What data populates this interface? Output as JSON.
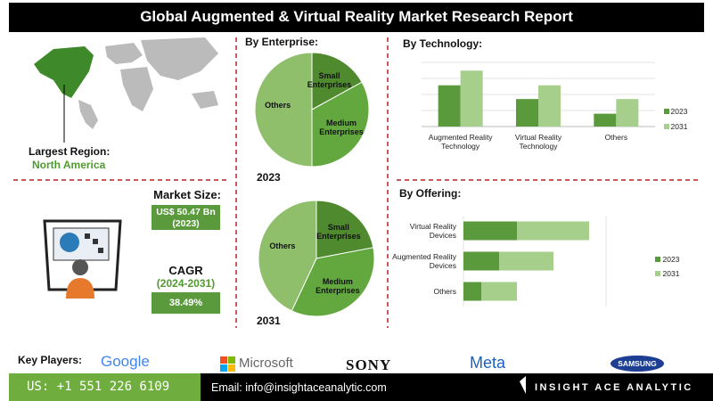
{
  "header": {
    "title": "Global Augmented & Virtual Reality Market Research Report"
  },
  "left": {
    "largest_region_label": "Largest Region:",
    "largest_region": "North America",
    "market_size_label": "Market Size:",
    "market_size": "US$ 50.47 Bn",
    "market_size_year": "(2023)",
    "cagr_label": "CAGR",
    "cagr_period": "(2024-2031)",
    "cagr": "38.49%"
  },
  "chart_data": [
    {
      "type": "pie",
      "title": "By  Enterprise:",
      "subtitle": "2023",
      "categories": [
        "Small Enterprises",
        "Medium Enterprises",
        "Others"
      ],
      "values": [
        17,
        33,
        50
      ],
      "colors": [
        "#4f8a2f",
        "#62a83f",
        "#8fbf6a"
      ]
    },
    {
      "type": "pie",
      "subtitle": "2031",
      "categories": [
        "Small Enterprises",
        "Medium Enterprises",
        "Others"
      ],
      "values": [
        22,
        35,
        43
      ],
      "colors": [
        "#4f8a2f",
        "#62a83f",
        "#8fbf6a"
      ]
    },
    {
      "type": "bar",
      "title": "By Technology:",
      "categories": [
        "Augmented Reality Technology",
        "Virtual Reality Technology",
        "Others"
      ],
      "series": [
        {
          "name": "2023",
          "color": "#5a9a3c",
          "values": [
            4.5,
            3,
            1.4
          ]
        },
        {
          "name": "2031",
          "color": "#a6cf8b",
          "values": [
            6.1,
            4.5,
            3
          ]
        }
      ],
      "ylim": [
        0,
        7
      ],
      "grid": true,
      "legend": "right"
    },
    {
      "type": "hbar_stacked",
      "title": "By Offering:",
      "categories": [
        "Virtual Reality Devices",
        "Augmented Reality Devices",
        "Others"
      ],
      "series": [
        {
          "name": "2023",
          "color": "#5a9a3c",
          "values": [
            60,
            40,
            20
          ]
        },
        {
          "name": "2031",
          "color": "#a6cf8b",
          "values": [
            81,
            61,
            40
          ]
        }
      ],
      "xlim": [
        0,
        160
      ],
      "grid": true,
      "legend": "right"
    }
  ],
  "footer": {
    "key_players_label": "Key Players:",
    "players": [
      "Google",
      "Microsoft",
      "SONY",
      "Meta",
      "SAMSUNG"
    ],
    "phone": "US: +1 551 226 6109",
    "email": "Email: info@insightaceanalytic.com",
    "brand": "INSIGHT ACE ANALYTIC"
  }
}
